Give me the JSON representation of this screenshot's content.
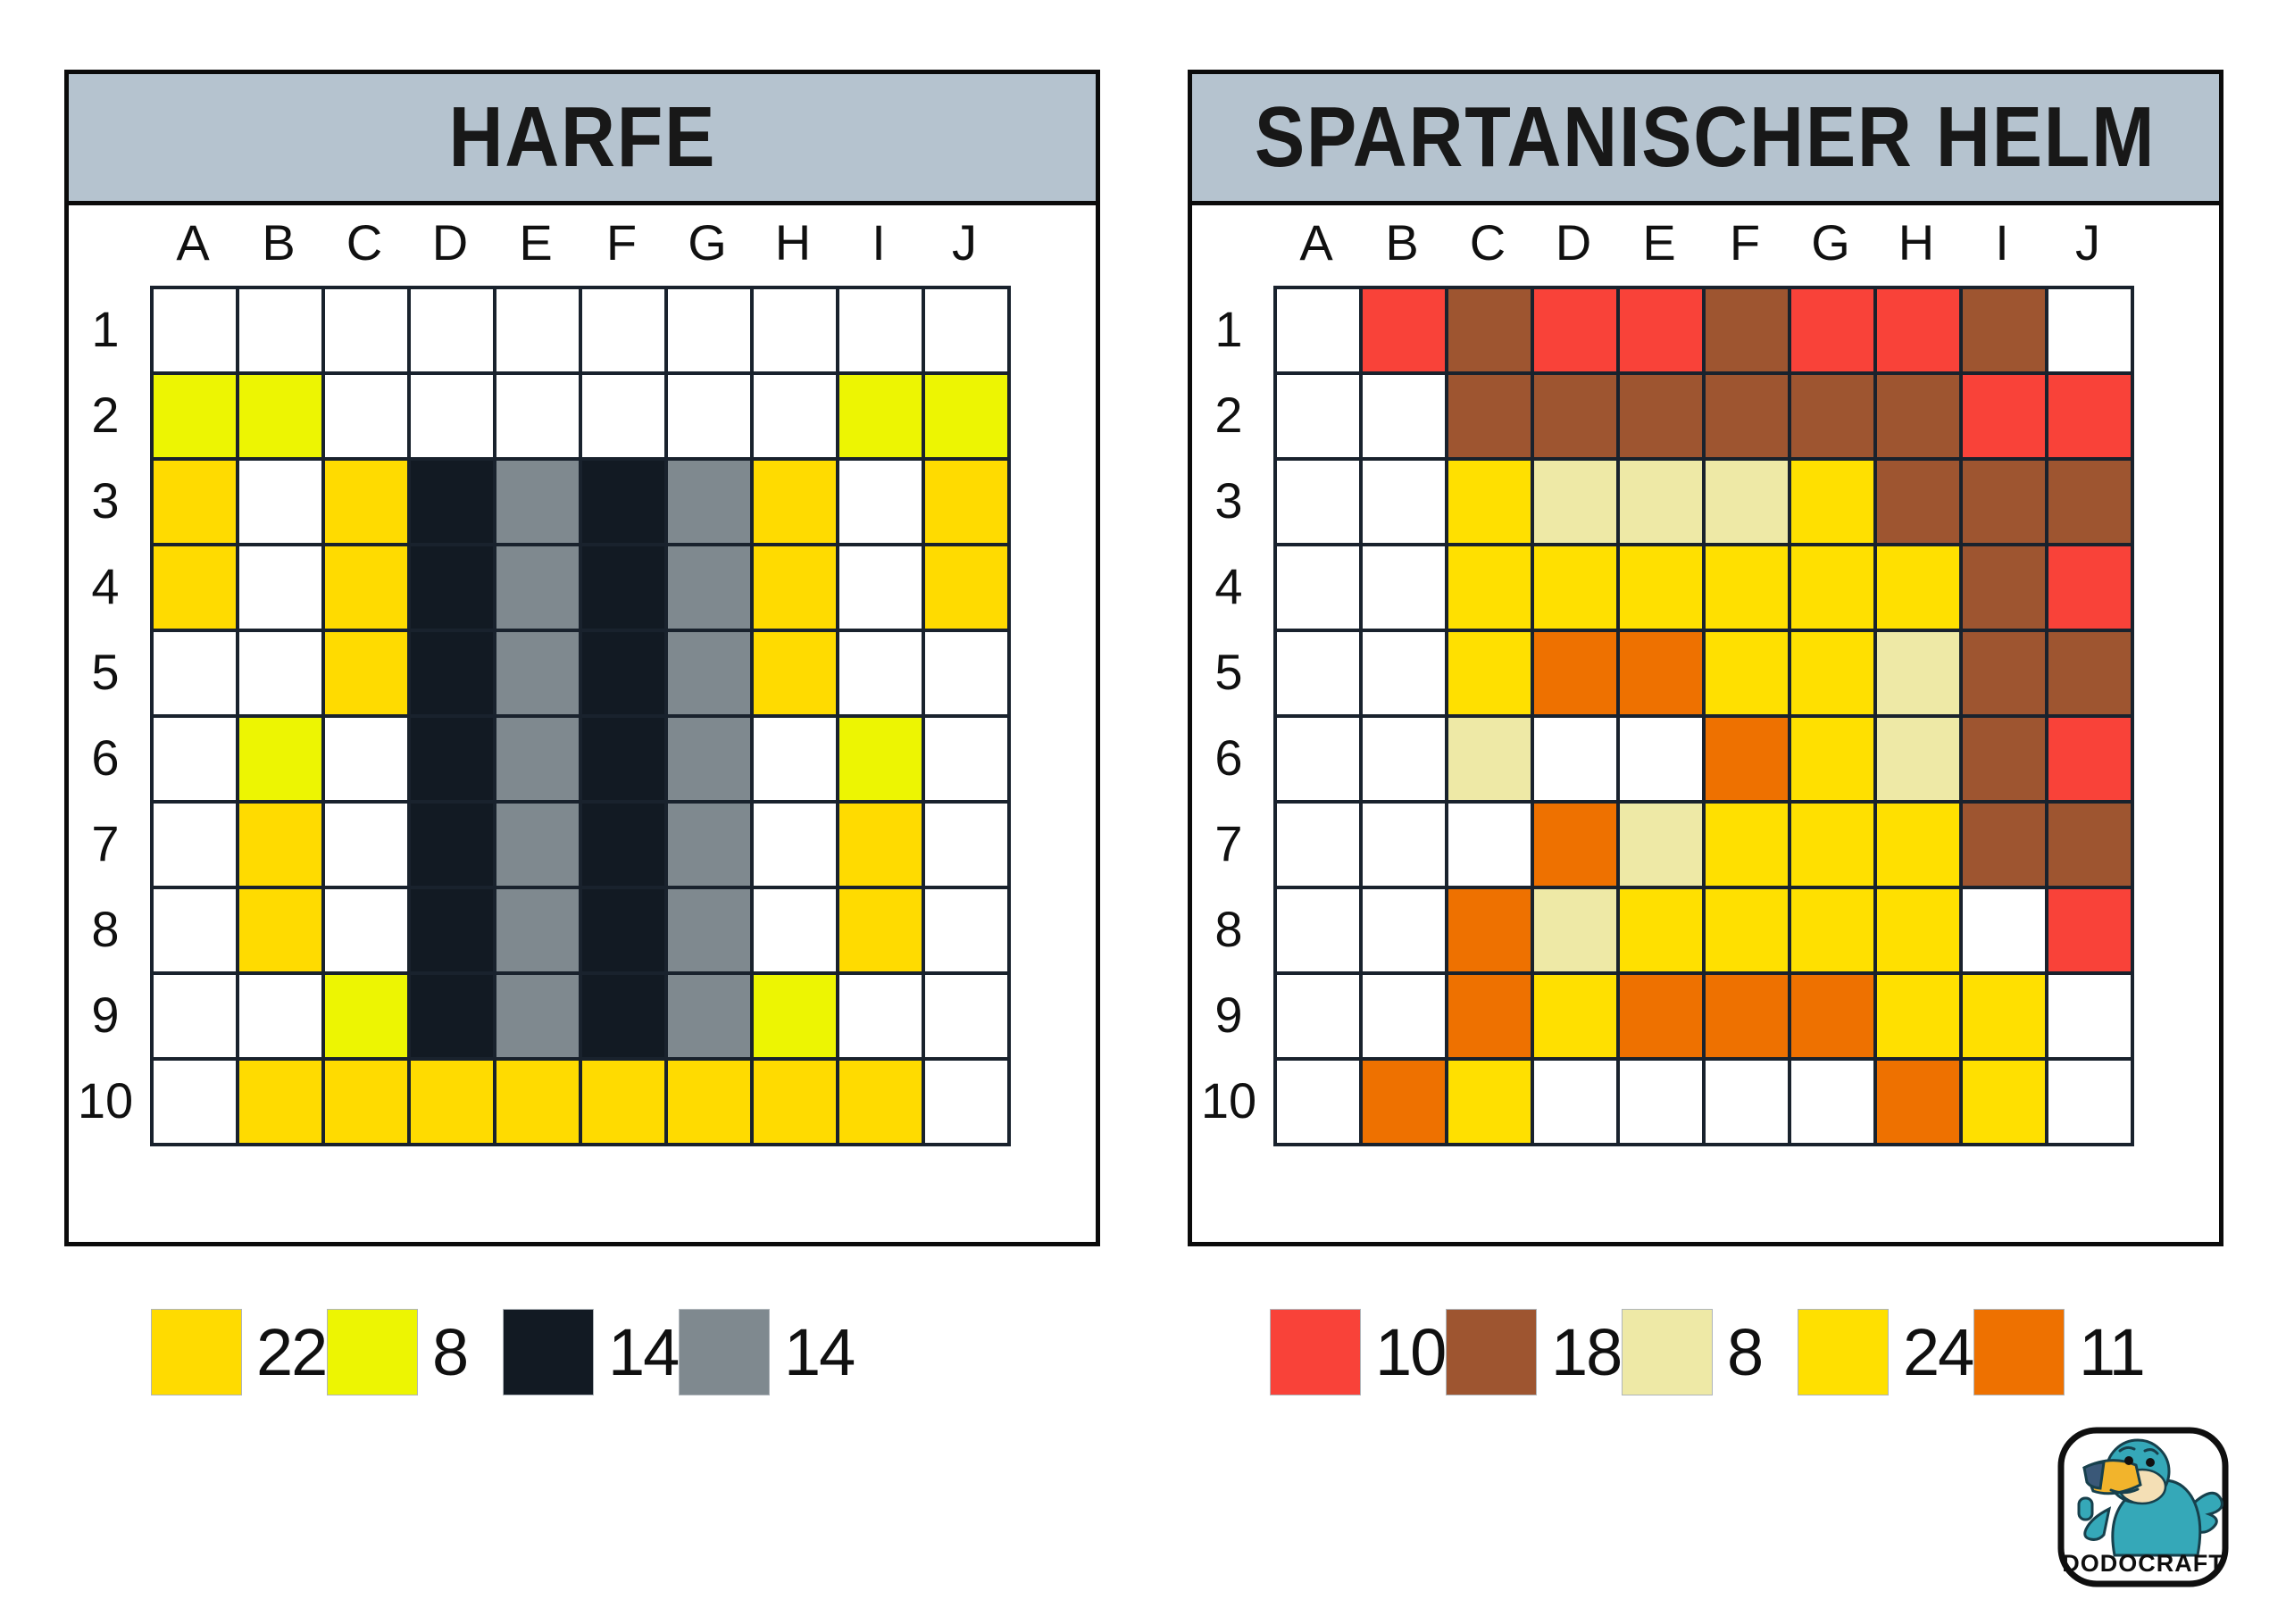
{
  "cards": [
    {
      "title": "HARFE",
      "columns": [
        "A",
        "B",
        "C",
        "D",
        "E",
        "F",
        "G",
        "H",
        "I",
        "J"
      ],
      "row_labels": [
        "1",
        "2",
        "3",
        "4",
        "5",
        "6",
        "7",
        "8",
        "9",
        "10"
      ],
      "palette": {
        ".": "#FFFFFF",
        "Y": "#FFDB00",
        "L": "#EDF502",
        "K": "#121A23",
        "G": "#7F898F"
      },
      "pixels": [
        "..........",
        "LL......LL",
        "Y.YKGKGY.Y",
        "Y.YKGKGY.Y",
        "..YKGKGY..",
        ".L.KGKG.L.",
        ".Y.KGKG.Y.",
        ".Y.KGKG.Y.",
        "..LKGKGL..",
        ".YYYYYYYY."
      ],
      "legend": [
        {
          "key": "Y",
          "count": "22"
        },
        {
          "key": "L",
          "count": "8"
        },
        {
          "key": "K",
          "count": "14"
        },
        {
          "key": "G",
          "count": "14"
        }
      ]
    },
    {
      "title": "SPARTANISCHER HELM",
      "columns": [
        "A",
        "B",
        "C",
        "D",
        "E",
        "F",
        "G",
        "H",
        "I",
        "J"
      ],
      "row_labels": [
        "1",
        "2",
        "3",
        "4",
        "5",
        "6",
        "7",
        "8",
        "9",
        "10"
      ],
      "palette": {
        ".": "#FFFFFF",
        "R": "#F94239",
        "B": "#9E5530",
        "C": "#EEE9A6",
        "Y": "#FFE000",
        "O": "#EE7100"
      },
      "pixels": [
        ".RBRRBRRB.",
        "..BBBBBBRR",
        "..YCCCYBBB",
        "..YYYYYYBR",
        "..YOOYYCBB",
        "..C..OYCBR",
        "...OCYYYBB",
        "..OCYYYY.R",
        "..OYOOOYY.",
        ".OY....OY."
      ],
      "legend": [
        {
          "key": "R",
          "count": "10"
        },
        {
          "key": "B",
          "count": "18"
        },
        {
          "key": "C",
          "count": "8"
        },
        {
          "key": "Y",
          "count": "24"
        },
        {
          "key": "O",
          "count": "11"
        }
      ]
    }
  ],
  "logo": {
    "text": "DODOCRAFT"
  },
  "colors": {
    "header_bar": "#B5C3CF",
    "card_border": "#0B0B0B",
    "grid_line": "#19222D",
    "title_text": "#181818",
    "label_text": "#101010"
  }
}
